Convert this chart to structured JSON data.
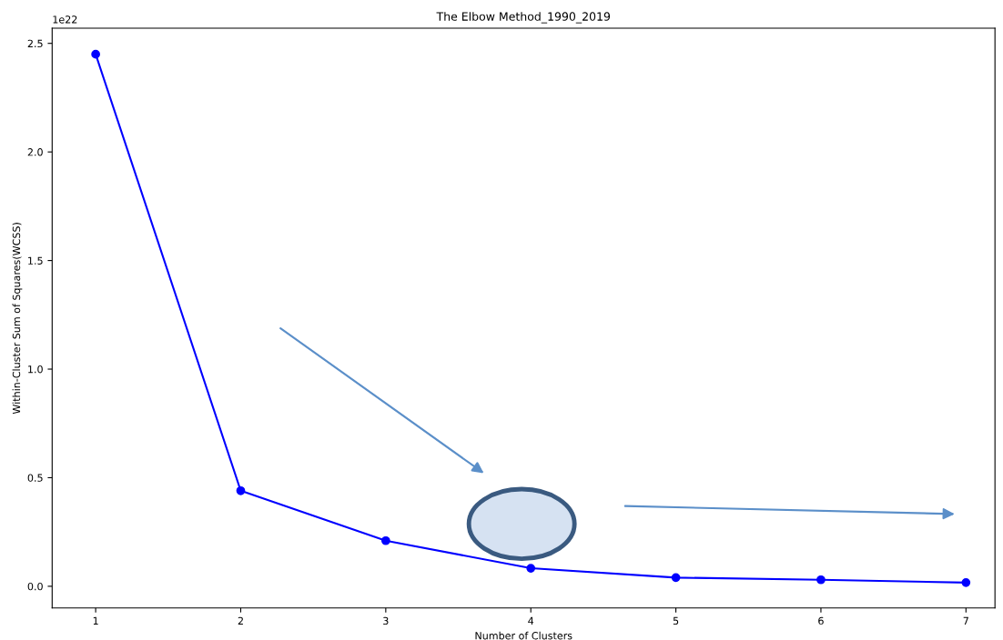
{
  "chart_data": {
    "type": "line",
    "title": "The Elbow Method_1990_2019",
    "xlabel": "Number of Clusters",
    "ylabel": "Within-Cluster Sum of Squares(WCSS)",
    "x": [
      1,
      2,
      3,
      4,
      5,
      6,
      7
    ],
    "series": [
      {
        "color": "#0000ff",
        "values": [
          2.45,
          0.44,
          0.21,
          0.083,
          0.04,
          0.03,
          0.017
        ]
      }
    ],
    "marker": "circle",
    "line_style": "solid",
    "grid": false,
    "legend": false,
    "xlim": [
      0.7,
      7.2
    ],
    "xticks": [
      1,
      2,
      3,
      4,
      5,
      6,
      7
    ],
    "ylim": [
      -0.1,
      2.57
    ],
    "yticks": [
      {
        "value": 0,
        "label": "0.0"
      },
      0.5,
      {
        "value": 1,
        "label": "1.0"
      },
      1.5,
      {
        "value": 2,
        "label": "2.0"
      },
      2.5
    ],
    "annotations": [
      "1e22"
    ]
  }
}
